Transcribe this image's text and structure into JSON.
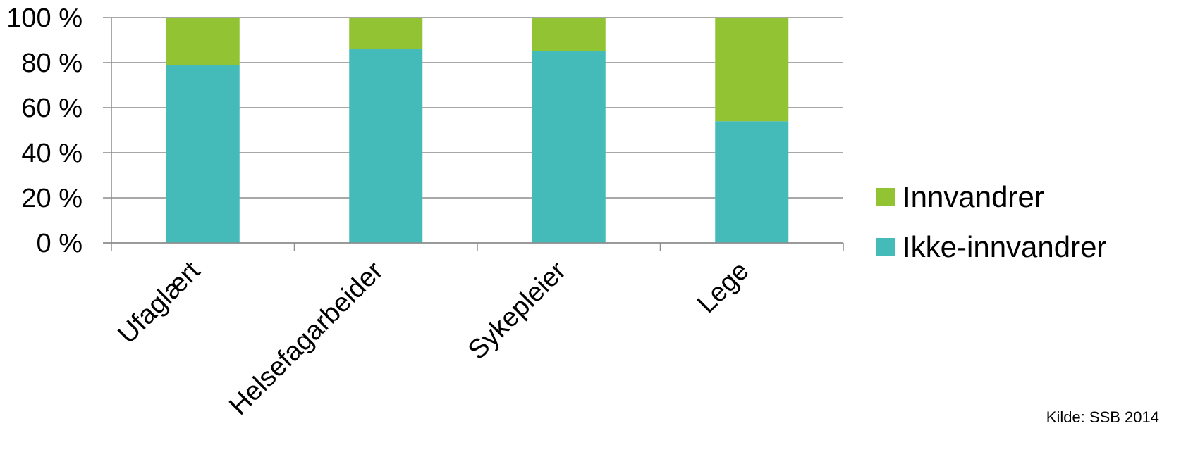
{
  "chart_data": {
    "type": "bar",
    "stacked": true,
    "categories": [
      "Ufaglært",
      "Helsefagarbeider",
      "Sykepleier",
      "Lege"
    ],
    "series": [
      {
        "name": "Ikke-innvandrer",
        "color": "#45BBB9",
        "values": [
          79,
          86,
          85,
          54
        ]
      },
      {
        "name": "Innvandrer",
        "color": "#92C332",
        "values": [
          21,
          14,
          15,
          46
        ]
      }
    ],
    "yticks": [
      "0 %",
      "20 %",
      "40 %",
      "60 %",
      "80 %",
      "100 %"
    ],
    "ylim": [
      0,
      100
    ],
    "grid": true,
    "legend_position": "right",
    "legend_order": [
      "Innvandrer",
      "Ikke-innvandrer"
    ]
  },
  "source_text": "Kilde: SSB 2014"
}
